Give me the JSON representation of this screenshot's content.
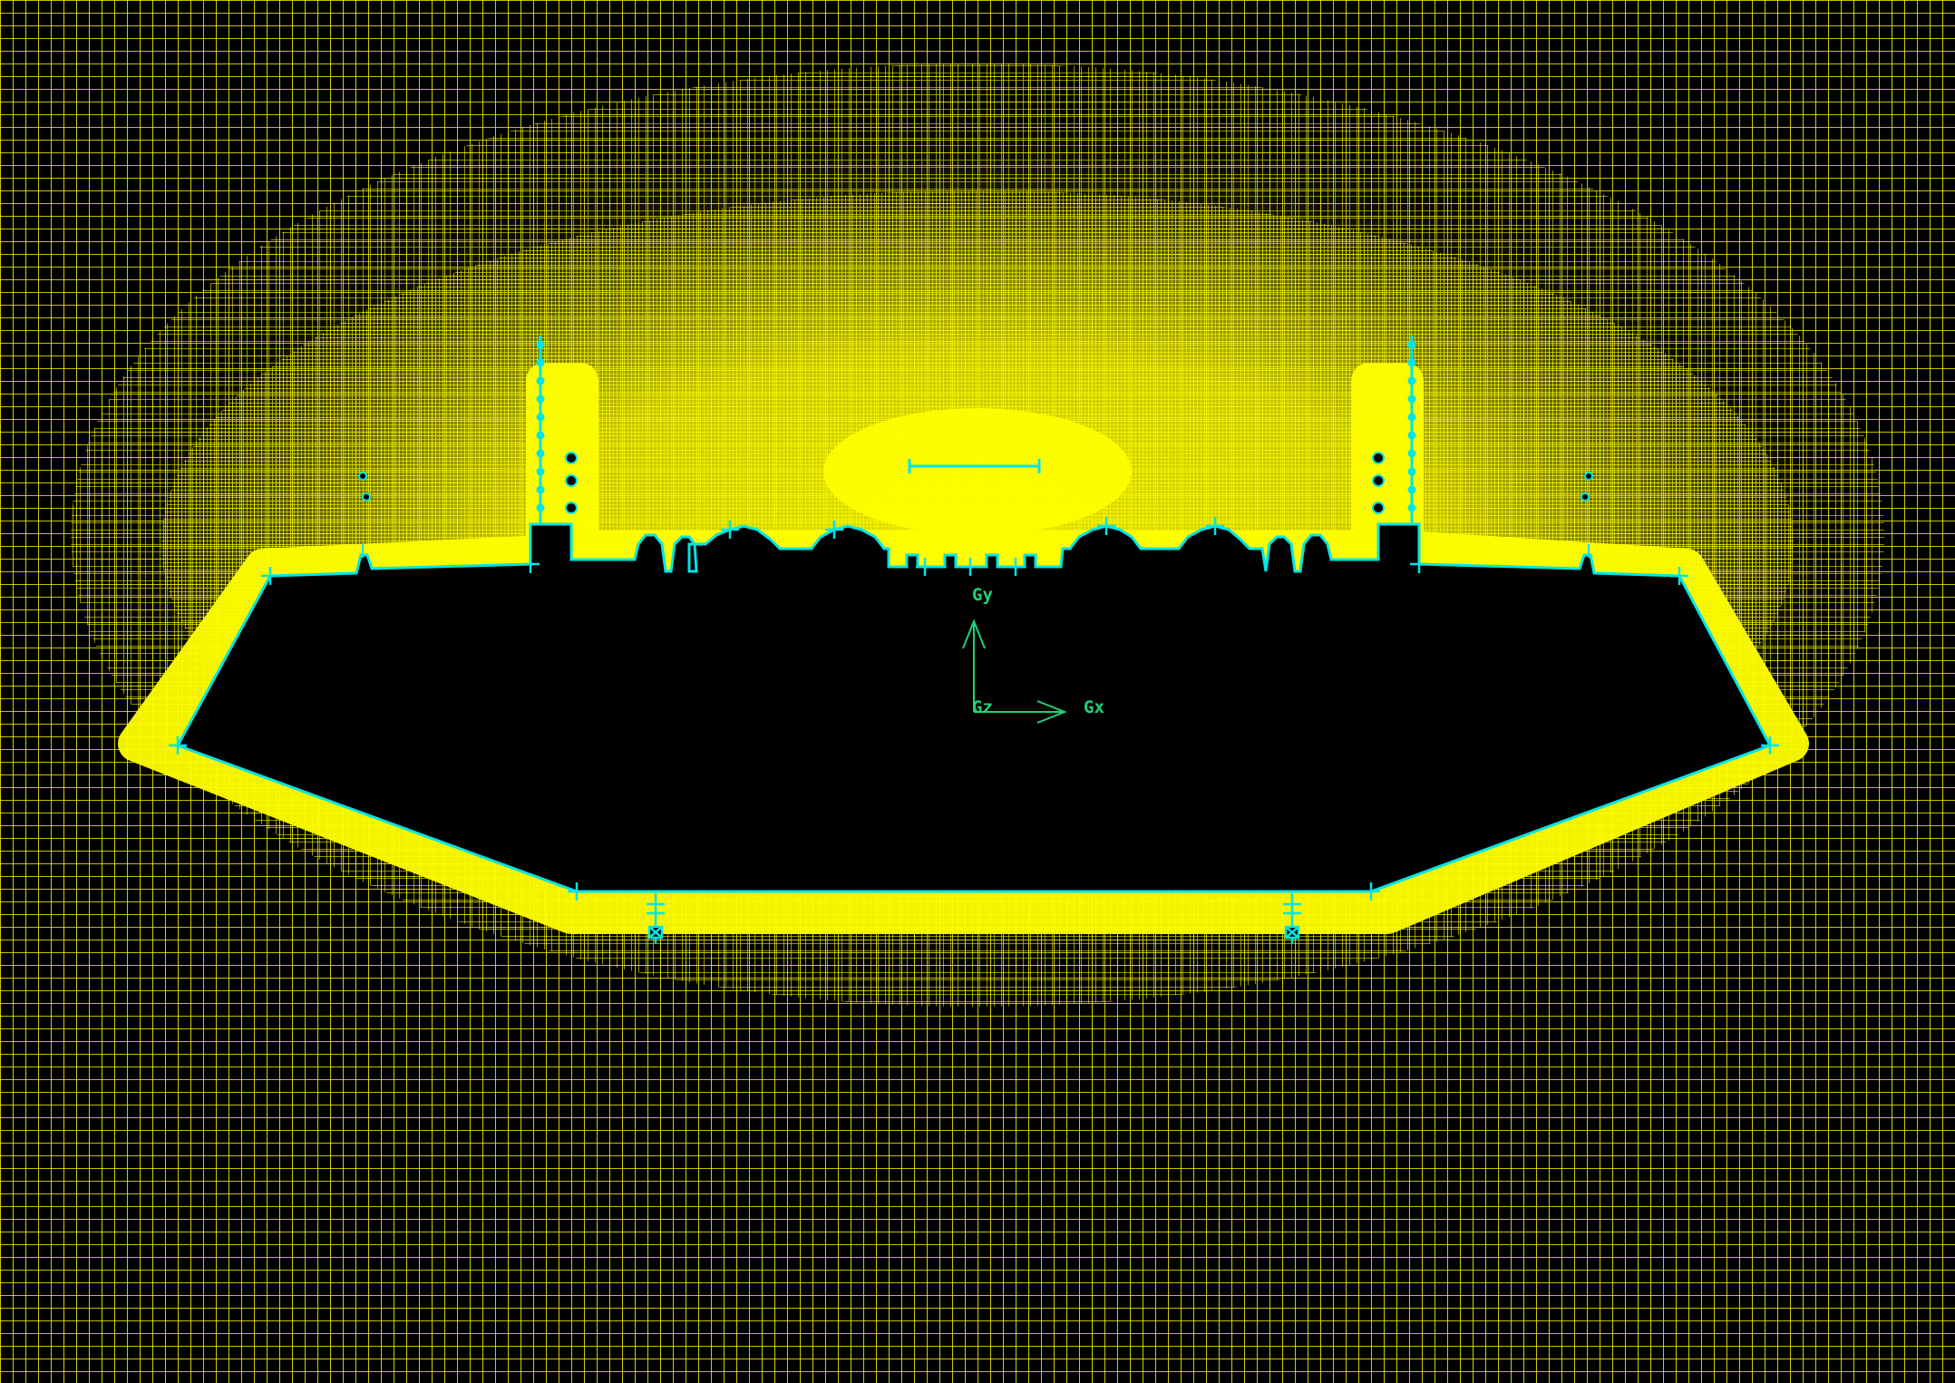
{
  "viewport": {
    "background_color": "#000000",
    "mesh_color": "#ffff00",
    "mesh_dense_color": "#ffff33",
    "boundary_color": "#00e5e5",
    "axis_color": "#1fd27a"
  },
  "triad": {
    "x_label": "Gx",
    "y_label": "Gy",
    "z_label": "Gz"
  },
  "elements": {
    "body_region": "hull-cross-section",
    "mesh_region": "quad-mesh-field"
  }
}
